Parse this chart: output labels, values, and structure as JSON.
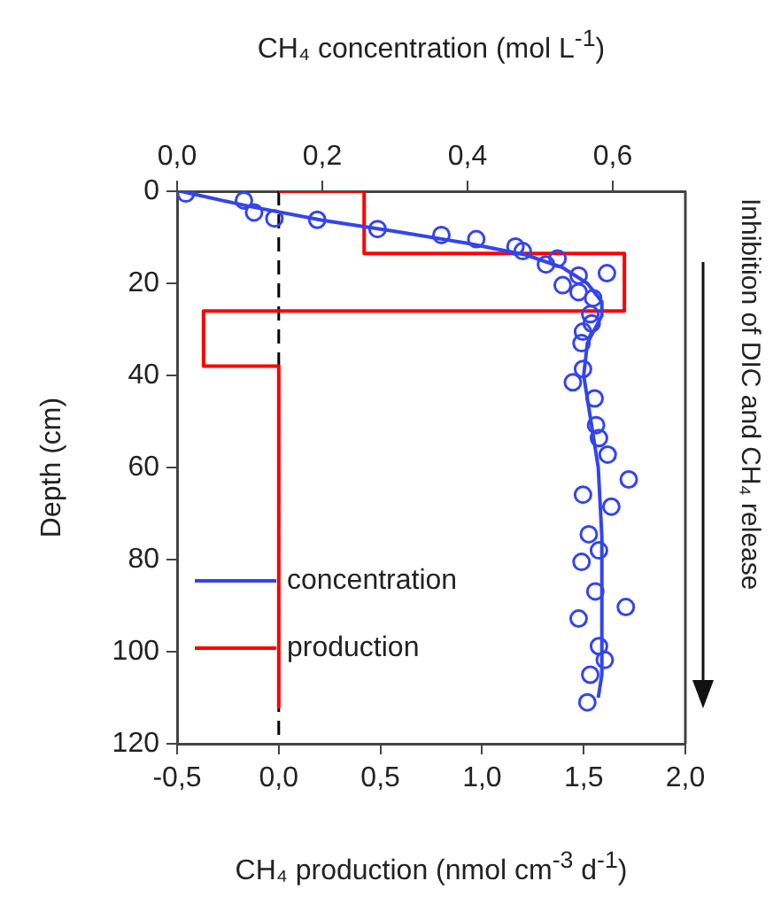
{
  "chart_data": {
    "type": "line",
    "xlabel": "CH₄ production (nmol cm$^{-3}$ d$^{-1}$)",
    "x2label": "CH₄ concentration (mol L$^{-1}$)",
    "ylabel": "Depth (cm)",
    "annotations": [
      "Inhibition of DIC and CH₄ release"
    ],
    "xlim": [
      -0.5,
      2.0
    ],
    "xticks": [
      {
        "value": -0.5,
        "label": "-0,5"
      },
      {
        "value": 0,
        "label": "0,0"
      },
      {
        "value": 0.5,
        "label": "0,5"
      },
      {
        "value": 1,
        "label": "1,0"
      },
      {
        "value": 1.5,
        "label": "1,5"
      },
      {
        "value": 2,
        "label": "2,0"
      }
    ],
    "x2lim": [
      0,
      0.7
    ],
    "x2ticks": [
      {
        "value": 0,
        "label": "0,0"
      },
      {
        "value": 0.2,
        "label": "0,2"
      },
      {
        "value": 0.4,
        "label": "0,4"
      },
      {
        "value": 0.6,
        "label": "0,6"
      }
    ],
    "ylim": [
      120,
      0
    ],
    "yticks": [
      0,
      20,
      40,
      60,
      80,
      100,
      120
    ],
    "grid": false,
    "legend": "bottom left",
    "ref_lines": [
      {
        "axis": "x",
        "value": 0,
        "color": "#000000",
        "line_style": "dashed"
      }
    ],
    "series": [
      {
        "name": "concentration",
        "type": "line",
        "axis": "x2",
        "color": "#3344ee",
        "marker": "none",
        "x": [
          0.005,
          0.1,
          0.2,
          0.3,
          0.4,
          0.48,
          0.53,
          0.565,
          0.585,
          0.585,
          0.565,
          0.56,
          0.57,
          0.58,
          0.585,
          0.585,
          0.58
        ],
        "values": [
          0,
          3.3,
          6.3,
          8.7,
          11.3,
          13.8,
          16.5,
          20,
          24,
          27,
          33,
          40,
          50,
          60,
          75,
          105,
          110
        ]
      },
      {
        "type": "scatter",
        "axis": "x2",
        "color": "#3344ee",
        "marker": "circle",
        "x": [
          0.012,
          0.092,
          0.106,
          0.134,
          0.193,
          0.276,
          0.364,
          0.412,
          0.466,
          0.476,
          0.508,
          0.524,
          0.553,
          0.592,
          0.531,
          0.553,
          0.573,
          0.569,
          0.571,
          0.559,
          0.557,
          0.559,
          0.545,
          0.575,
          0.577,
          0.581,
          0.593,
          0.622,
          0.559,
          0.598,
          0.567,
          0.581,
          0.557,
          0.576,
          0.618,
          0.553,
          0.581,
          0.589,
          0.569,
          0.565
        ],
        "values": [
          0.5,
          2,
          4.6,
          5.9,
          6.2,
          8.2,
          9.5,
          10.4,
          12,
          13,
          15.9,
          14.6,
          18.3,
          17.8,
          20.4,
          21.9,
          23.2,
          26.7,
          28.7,
          30.5,
          33,
          38.6,
          41.5,
          45,
          50.8,
          53.6,
          57.2,
          62.6,
          65.9,
          68.5,
          74.5,
          78,
          80.5,
          86.9,
          90.3,
          92.8,
          98.8,
          101.8,
          105,
          111
        ]
      },
      {
        "name": "production",
        "type": "line",
        "color": "#ff0000",
        "marker": "none",
        "x": [
          0,
          0.42,
          0.42,
          1.7,
          1.7,
          -0.37,
          -0.37,
          0,
          0
        ],
        "values": [
          0,
          0,
          13.5,
          13.5,
          26,
          26,
          38,
          38,
          112
        ]
      }
    ]
  }
}
